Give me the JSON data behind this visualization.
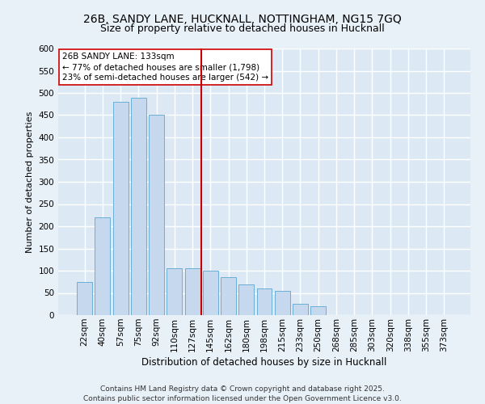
{
  "title1": "26B, SANDY LANE, HUCKNALL, NOTTINGHAM, NG15 7GQ",
  "title2": "Size of property relative to detached houses in Hucknall",
  "xlabel": "Distribution of detached houses by size in Hucknall",
  "ylabel": "Number of detached properties",
  "categories": [
    "22sqm",
    "40sqm",
    "57sqm",
    "75sqm",
    "92sqm",
    "110sqm",
    "127sqm",
    "145sqm",
    "162sqm",
    "180sqm",
    "198sqm",
    "215sqm",
    "233sqm",
    "250sqm",
    "268sqm",
    "285sqm",
    "303sqm",
    "320sqm",
    "338sqm",
    "355sqm",
    "373sqm"
  ],
  "values": [
    75,
    220,
    480,
    490,
    450,
    105,
    105,
    100,
    85,
    70,
    60,
    55,
    25,
    20,
    0,
    0,
    0,
    0,
    0,
    0,
    0
  ],
  "bar_color": "#c5d8ee",
  "bar_edge_color": "#6baed6",
  "background_color": "#dce9f5",
  "fig_background_color": "#e8f0f8",
  "grid_color": "#ffffff",
  "vline_x": 6.5,
  "vline_color": "#cc0000",
  "ylim": [
    0,
    600
  ],
  "yticks": [
    0,
    50,
    100,
    150,
    200,
    250,
    300,
    350,
    400,
    450,
    500,
    550,
    600
  ],
  "annotation_title": "26B SANDY LANE: 133sqm",
  "annotation_line1": "← 77% of detached houses are smaller (1,798)",
  "annotation_line2": "23% of semi-detached houses are larger (542) →",
  "annotation_box_color": "#ffffff",
  "annotation_border_color": "#cc0000",
  "footer": "Contains HM Land Registry data © Crown copyright and database right 2025.\nContains public sector information licensed under the Open Government Licence v3.0.",
  "title1_fontsize": 10,
  "title2_fontsize": 9,
  "xlabel_fontsize": 8.5,
  "ylabel_fontsize": 8,
  "annotation_fontsize": 7.5,
  "footer_fontsize": 6.5,
  "tick_fontsize": 7.5
}
